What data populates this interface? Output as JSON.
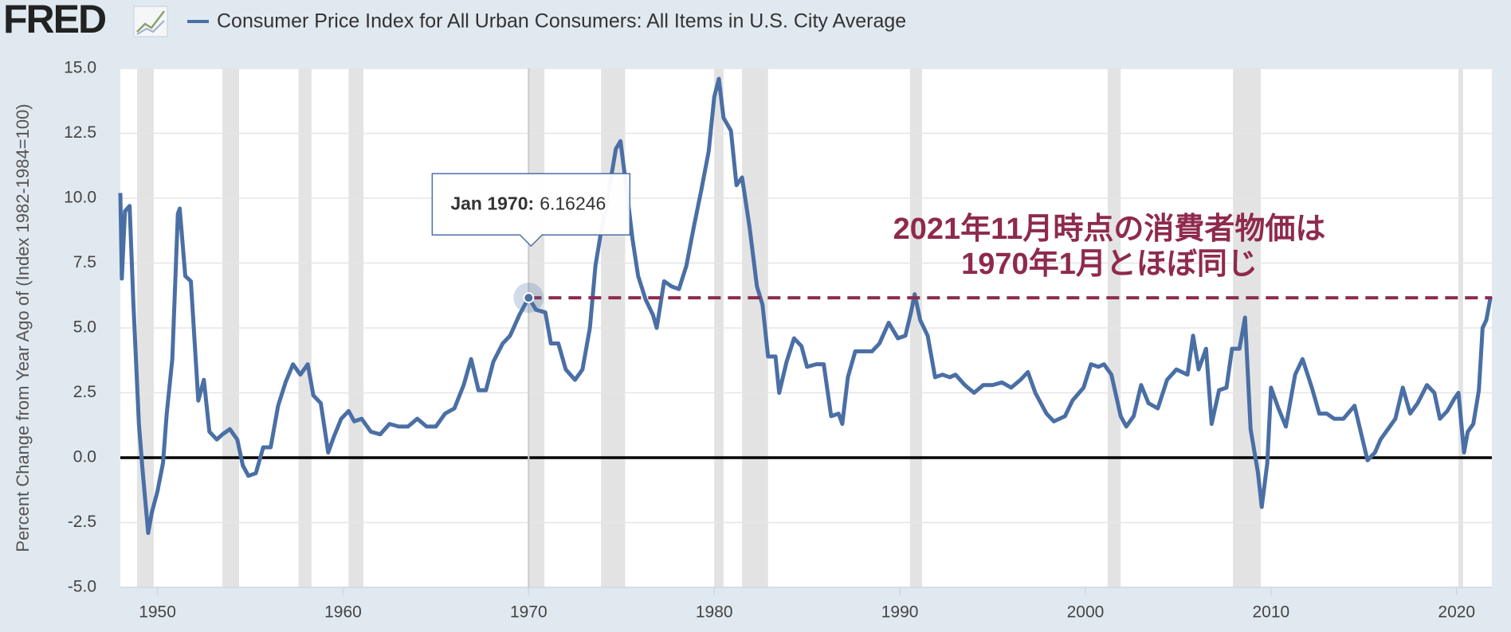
{
  "logo": "FRED",
  "chart_data": {
    "type": "line",
    "y_label": "Percent Change from Year Ago of (Index 1982-1984=100)",
    "xlim": [
      1948.0,
      2021.9
    ],
    "ylim": [
      -5,
      15
    ],
    "xticks": [
      1950,
      1960,
      1970,
      1980,
      1990,
      2000,
      2010,
      2020
    ],
    "yticks": [
      {
        "value": -5,
        "label": "-5.0"
      },
      {
        "value": -2.5,
        "label": "-2.5"
      },
      {
        "value": 0,
        "label": "0.0"
      },
      {
        "value": 2.5,
        "label": "2.5"
      },
      {
        "value": 5,
        "label": "5.0"
      },
      {
        "value": 7.5,
        "label": "7.5"
      },
      {
        "value": 10,
        "label": "10.0"
      },
      {
        "value": 12.5,
        "label": "12.5"
      },
      {
        "value": 15,
        "label": "15.0"
      }
    ],
    "grid": true,
    "recessions": [
      [
        1948.9,
        1949.8
      ],
      [
        1953.5,
        1954.4
      ],
      [
        1957.6,
        1958.3
      ],
      [
        1960.3,
        1961.1
      ],
      [
        1969.95,
        1970.85
      ],
      [
        1973.9,
        1975.2
      ],
      [
        1980.0,
        1980.5
      ],
      [
        1981.5,
        1982.9
      ],
      [
        1990.55,
        1991.2
      ],
      [
        2001.2,
        2001.9
      ],
      [
        2007.95,
        2009.45
      ],
      [
        2020.1,
        2020.35
      ]
    ],
    "series": [
      {
        "name": "Consumer Price Index for All Urban Consumers: All Items in U.S. City Average",
        "color": "#4a6fa5",
        "x": [
          1948.0,
          1948.08,
          1948.25,
          1948.5,
          1948.7,
          1949.0,
          1949.2,
          1949.5,
          1949.7,
          1950.0,
          1950.3,
          1950.5,
          1950.8,
          1951.1,
          1951.2,
          1951.5,
          1951.8,
          1952.2,
          1952.5,
          1952.8,
          1953.2,
          1953.5,
          1953.9,
          1954.3,
          1954.6,
          1954.9,
          1955.3,
          1955.7,
          1956.1,
          1956.5,
          1956.9,
          1957.3,
          1957.7,
          1958.1,
          1958.4,
          1958.8,
          1959.2,
          1959.5,
          1959.9,
          1960.3,
          1960.6,
          1961.0,
          1961.5,
          1962.0,
          1962.5,
          1963.0,
          1963.5,
          1964.0,
          1964.5,
          1965.0,
          1965.5,
          1966.0,
          1966.5,
          1966.9,
          1967.3,
          1967.7,
          1968.1,
          1968.6,
          1969.0,
          1969.5,
          1970.0,
          1970.4,
          1970.9,
          1971.2,
          1971.6,
          1972.0,
          1972.5,
          1972.9,
          1973.3,
          1973.6,
          1973.9,
          1974.3,
          1974.7,
          1974.95,
          1975.3,
          1975.6,
          1975.9,
          1976.3,
          1976.7,
          1976.9,
          1977.3,
          1977.7,
          1978.1,
          1978.5,
          1978.9,
          1979.3,
          1979.7,
          1980.0,
          1980.25,
          1980.5,
          1980.9,
          1981.2,
          1981.5,
          1981.9,
          1982.3,
          1982.6,
          1982.9,
          1983.3,
          1983.5,
          1983.9,
          1984.3,
          1984.7,
          1985.0,
          1985.5,
          1985.9,
          1986.3,
          1986.7,
          1986.9,
          1987.2,
          1987.6,
          1988.0,
          1988.5,
          1988.9,
          1989.4,
          1989.9,
          1990.3,
          1990.6,
          1990.8,
          1991.1,
          1991.5,
          1991.9,
          1992.3,
          1992.7,
          1993.0,
          1993.5,
          1994.0,
          1994.5,
          1995.0,
          1995.5,
          1996.0,
          1996.5,
          1996.9,
          1997.3,
          1997.9,
          1998.3,
          1998.9,
          1999.3,
          1999.9,
          2000.3,
          2000.7,
          2001.0,
          2001.4,
          2001.9,
          2002.2,
          2002.6,
          2003.0,
          2003.4,
          2003.9,
          2004.4,
          2004.9,
          2005.5,
          2005.8,
          2006.1,
          2006.5,
          2006.8,
          2007.2,
          2007.6,
          2007.9,
          2008.3,
          2008.6,
          2008.9,
          2009.3,
          2009.5,
          2009.8,
          2010.0,
          2010.4,
          2010.8,
          2011.3,
          2011.7,
          2012.2,
          2012.6,
          2013.0,
          2013.4,
          2013.9,
          2014.5,
          2014.9,
          2015.2,
          2015.6,
          2015.9,
          2016.3,
          2016.7,
          2017.1,
          2017.5,
          2017.9,
          2018.4,
          2018.8,
          2019.1,
          2019.5,
          2019.9,
          2020.1,
          2020.4,
          2020.6,
          2020.9,
          2021.2,
          2021.4,
          2021.6,
          2021.83
        ],
        "values": [
          10.2,
          6.9,
          9.5,
          9.7,
          6.0,
          1.3,
          -0.5,
          -2.9,
          -2.1,
          -1.3,
          -0.2,
          1.7,
          3.8,
          9.4,
          9.6,
          7.0,
          6.8,
          2.2,
          3.0,
          1.0,
          0.7,
          0.9,
          1.1,
          0.7,
          -0.3,
          -0.7,
          -0.6,
          0.4,
          0.4,
          2.0,
          2.9,
          3.6,
          3.2,
          3.6,
          2.4,
          2.1,
          0.2,
          0.8,
          1.5,
          1.8,
          1.4,
          1.5,
          1.0,
          0.9,
          1.3,
          1.2,
          1.2,
          1.5,
          1.2,
          1.2,
          1.7,
          1.9,
          2.8,
          3.8,
          2.6,
          2.6,
          3.7,
          4.4,
          4.7,
          5.5,
          6.16246,
          5.7,
          5.6,
          4.4,
          4.4,
          3.4,
          3.0,
          3.4,
          5.0,
          7.4,
          8.7,
          10.2,
          11.9,
          12.2,
          10.2,
          8.4,
          7.0,
          6.1,
          5.5,
          5.0,
          6.8,
          6.6,
          6.5,
          7.4,
          8.9,
          10.3,
          11.8,
          13.9,
          14.6,
          13.1,
          12.6,
          10.5,
          10.8,
          8.9,
          6.6,
          5.9,
          3.9,
          3.9,
          2.5,
          3.7,
          4.6,
          4.3,
          3.5,
          3.6,
          3.6,
          1.6,
          1.7,
          1.3,
          3.1,
          4.1,
          4.1,
          4.1,
          4.4,
          5.2,
          4.6,
          4.7,
          5.6,
          6.3,
          5.3,
          4.7,
          3.1,
          3.2,
          3.1,
          3.2,
          2.8,
          2.5,
          2.8,
          2.8,
          2.9,
          2.7,
          3.0,
          3.3,
          2.5,
          1.7,
          1.4,
          1.6,
          2.2,
          2.7,
          3.6,
          3.5,
          3.6,
          3.2,
          1.6,
          1.2,
          1.6,
          2.8,
          2.1,
          1.9,
          3.0,
          3.4,
          3.2,
          4.7,
          3.4,
          4.2,
          1.3,
          2.6,
          2.7,
          4.2,
          4.2,
          5.4,
          1.1,
          -0.6,
          -1.9,
          -0.2,
          2.7,
          1.9,
          1.2,
          3.2,
          3.8,
          2.7,
          1.7,
          1.7,
          1.5,
          1.5,
          2.0,
          0.8,
          -0.1,
          0.2,
          0.7,
          1.1,
          1.5,
          2.7,
          1.7,
          2.1,
          2.8,
          2.5,
          1.5,
          1.8,
          2.3,
          2.5,
          0.2,
          1.0,
          1.3,
          2.6,
          5.0,
          5.3,
          6.2
        ]
      }
    ],
    "tooltip": {
      "label": "Jan 1970:",
      "value": 6.16246
    },
    "annotation": [
      "2021年11月時点の消費者物価は",
      "1970年1月とほぼ同じ"
    ],
    "annotation_color": "#8e2a4d"
  }
}
